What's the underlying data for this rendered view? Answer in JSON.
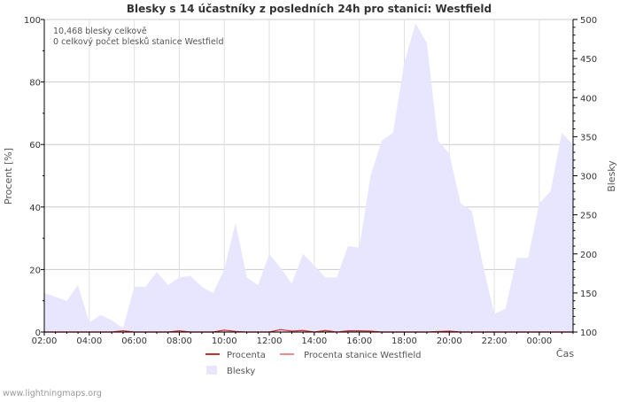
{
  "chart_data": {
    "type": "area",
    "title": "Blesky s 14 účastníky z posledních 24h pro stanici: Westfield",
    "xlabel": "Čas",
    "ylabel_left": "Procent   [%]",
    "ylabel_right": "Blesky",
    "y_left_ticks": [
      "0",
      "20",
      "40",
      "60",
      "80",
      "100"
    ],
    "y_right_ticks": [
      "100",
      "150",
      "200",
      "250",
      "300",
      "350",
      "400",
      "450",
      "500"
    ],
    "y_left_range": [
      0,
      100
    ],
    "y_right_range": [
      100,
      500
    ],
    "x_range": [
      2,
      25.5
    ],
    "x_ticks": [
      {
        "value": 2,
        "label": "02:00"
      },
      {
        "value": 4,
        "label": "04:00"
      },
      {
        "value": 6,
        "label": "06:00"
      },
      {
        "value": 8,
        "label": "08:00"
      },
      {
        "value": 10,
        "label": "10:00"
      },
      {
        "value": 12,
        "label": "12:00"
      },
      {
        "value": 14,
        "label": "14:00"
      },
      {
        "value": 16,
        "label": "16:00"
      },
      {
        "value": 18,
        "label": "18:00"
      },
      {
        "value": 20,
        "label": "20:00"
      },
      {
        "value": 22,
        "label": "22:00"
      },
      {
        "value": 24,
        "label": "00:00"
      }
    ],
    "annotations": [
      "10,468 blesky celkově",
      "0 celkový počet blesků stanice Westfield"
    ],
    "series": [
      {
        "name": "Blesky",
        "axis": "right",
        "color": "#e8e6ff",
        "x": [
          2,
          2.5,
          3,
          3.5,
          4,
          4.5,
          5,
          5.5,
          6,
          6.5,
          7,
          7.5,
          8,
          8.5,
          9,
          9.5,
          10,
          10.5,
          11,
          11.5,
          12,
          12.5,
          13,
          13.5,
          14,
          14.5,
          15,
          15.5,
          16,
          16.5,
          17,
          17.5,
          18,
          18.5,
          19,
          19.5,
          20,
          20.5,
          21,
          21.5,
          22,
          22.5,
          23,
          23.5,
          24,
          24.5,
          25,
          25.5
        ],
        "values": [
          150,
          145,
          140,
          160,
          112,
          122,
          115,
          105,
          158,
          158,
          177,
          160,
          170,
          172,
          158,
          150,
          180,
          240,
          170,
          160,
          200,
          182,
          162,
          200,
          185,
          170,
          170,
          210,
          208,
          300,
          345,
          355,
          445,
          495,
          470,
          345,
          328,
          265,
          255,
          185,
          123,
          130,
          195,
          195,
          265,
          280,
          355,
          340
        ]
      },
      {
        "name": "Procenta",
        "axis": "left",
        "color": "#d22b2b",
        "x": [
          2,
          5,
          5.5,
          6,
          7.5,
          8,
          8.5,
          9.5,
          10,
          10.5,
          11,
          12,
          12.5,
          13,
          13.5,
          14,
          14.5,
          15,
          15.5,
          16,
          16.5,
          17,
          19,
          20,
          20.5,
          21,
          25.5
        ],
        "values": [
          0,
          0,
          0.4,
          0,
          0,
          0.4,
          0,
          0,
          0.6,
          0.2,
          0,
          0,
          0.8,
          0.3,
          0.5,
          0,
          0.5,
          0,
          0.4,
          0.4,
          0.3,
          0,
          0,
          0.3,
          0,
          0,
          0
        ]
      },
      {
        "name": "Procenta stanice Westfield",
        "axis": "left",
        "color": "#f08c8c",
        "x": [
          2,
          25.5
        ],
        "values": [
          0,
          0
        ]
      }
    ]
  },
  "footer": "www.lightningmaps.org"
}
